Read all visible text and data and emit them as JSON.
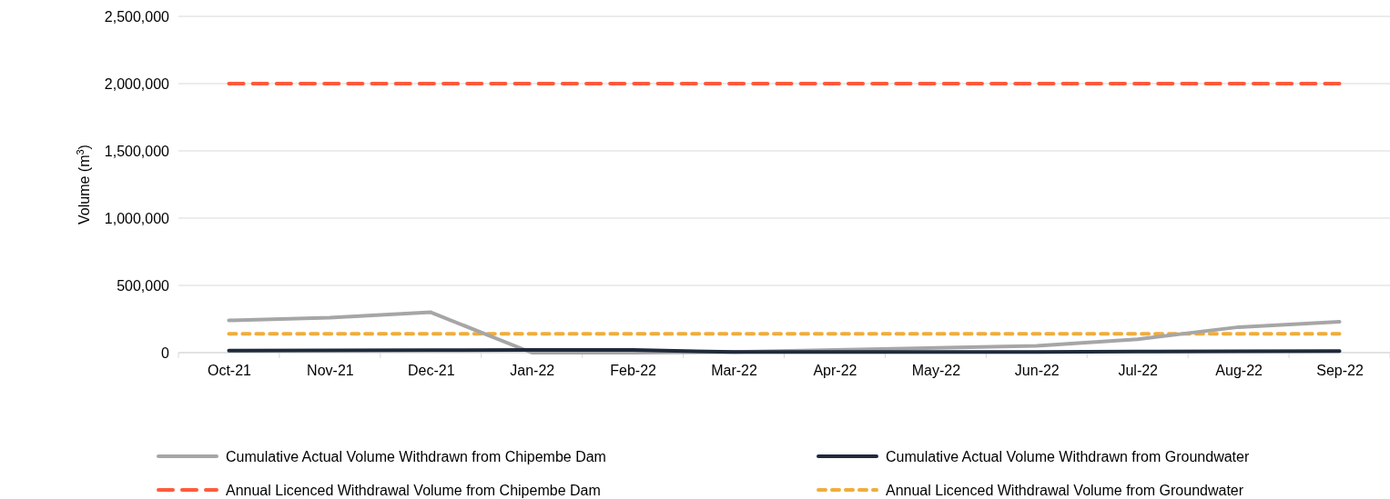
{
  "chart_data": {
    "type": "line",
    "ylabel": "Volume (m$^{3}$)",
    "categories": [
      "Oct-21",
      "Nov-21",
      "Dec-21",
      "Jan-22",
      "Feb-22",
      "Mar-22",
      "Apr-22",
      "May-22",
      "Jun-22",
      "Jul-22",
      "Aug-22",
      "Sep-22"
    ],
    "series": [
      {
        "name": "Cumulative Actual Volume Withdrawn from Chipembe Dam",
        "color": "#a6a6a6",
        "line_style": "solid",
        "values": [
          240000,
          260000,
          300000,
          0,
          0,
          5000,
          20000,
          35000,
          50000,
          100000,
          190000,
          230000
        ]
      },
      {
        "name": "Cumulative Actual Volume Withdrawn from Groundwater",
        "color": "#1f2a3c",
        "line_style": "solid",
        "values": [
          15000,
          17000,
          18000,
          20000,
          20000,
          5000,
          5000,
          5000,
          5000,
          8000,
          10000,
          12000
        ]
      },
      {
        "name": "Annual Licenced Withdrawal Volume from Chipembe Dam",
        "color": "#ff5a3c",
        "line_style": "dashed",
        "values": [
          2000000,
          2000000,
          2000000,
          2000000,
          2000000,
          2000000,
          2000000,
          2000000,
          2000000,
          2000000,
          2000000,
          2000000
        ]
      },
      {
        "name": "Annual Licenced Withdrawal Volume from Groundwater",
        "color": "#f0ad3c",
        "line_style": "dotted",
        "values": [
          140000,
          140000,
          140000,
          140000,
          140000,
          140000,
          140000,
          140000,
          140000,
          140000,
          140000,
          140000
        ]
      }
    ],
    "ylim": [
      0,
      2500000
    ],
    "yticks": [
      {
        "value": 0,
        "label": "0"
      },
      {
        "value": 500000,
        "label": "500,000"
      },
      {
        "value": 1000000,
        "label": "1,000,000"
      },
      {
        "value": 1500000,
        "label": "1,500,000"
      },
      {
        "value": 2000000,
        "label": "2,000,000"
      },
      {
        "value": 2500000,
        "label": "2,500,000"
      }
    ],
    "grid": "y",
    "legend": "bottom",
    "marker": "none"
  }
}
